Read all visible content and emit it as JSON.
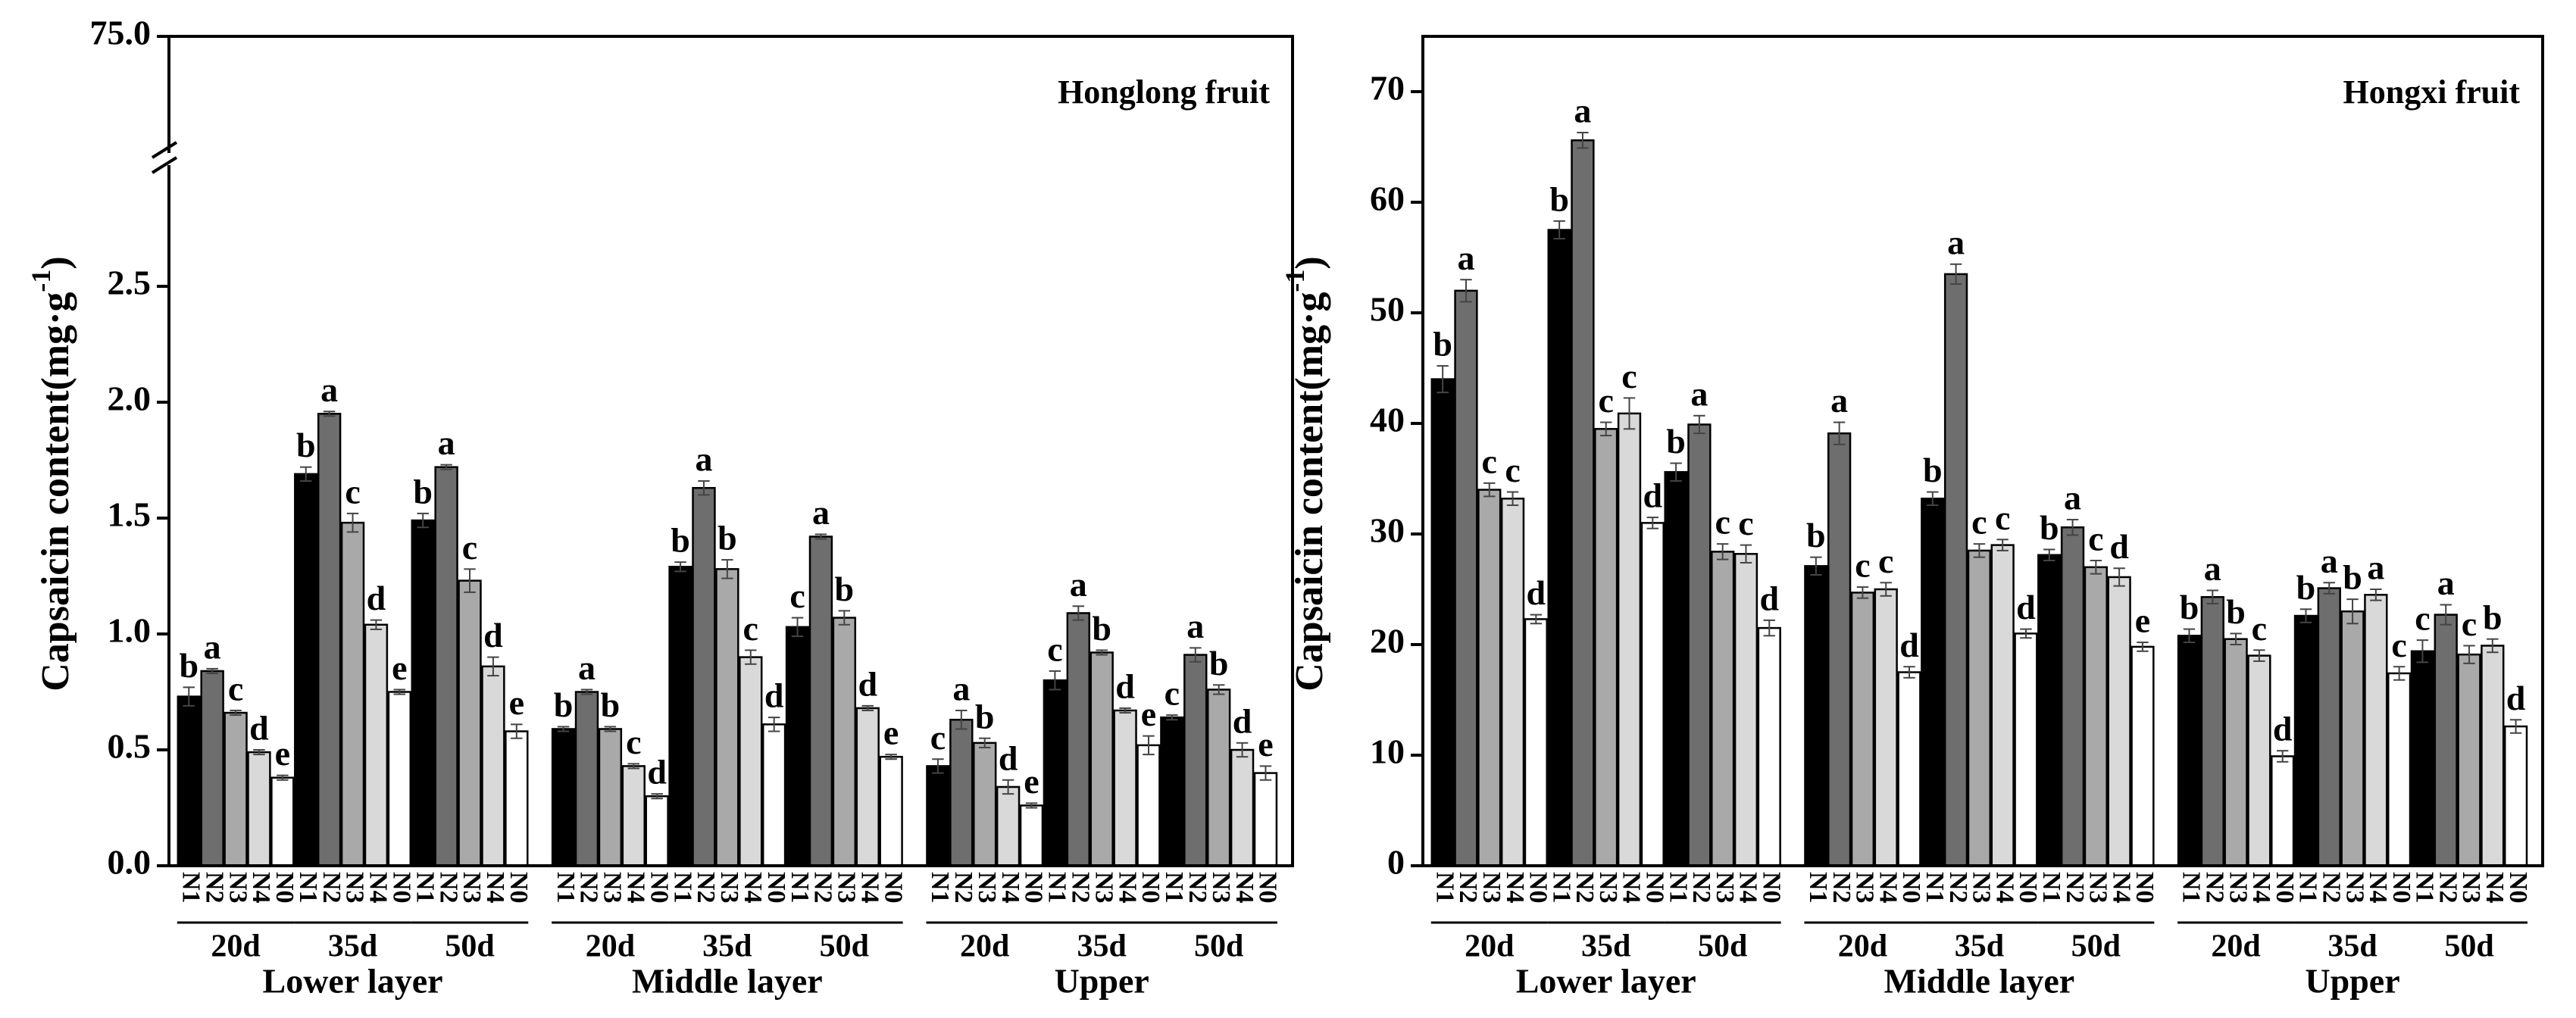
{
  "chart_data": [
    {
      "type": "bar",
      "title": "Honglong fruit",
      "ylabel": "Capsaicin content(mg·g",
      "ylabel_sup": "-1",
      "ylabel_end": ")",
      "groups": [
        "Lower layer",
        "Middle layer",
        "Upper"
      ],
      "categories": [
        "20d",
        "35d",
        "50d",
        "20d",
        "35d",
        "50d",
        "20d",
        "35d",
        "50d"
      ],
      "ylim": [
        0,
        75
      ],
      "ybreak": [
        3.0,
        72.0
      ],
      "yticks": [
        {
          "value": 0,
          "label": "0.0"
        },
        {
          "value": 0.5,
          "label": "0.5"
        },
        {
          "value": 1,
          "label": "1.0"
        },
        {
          "value": 1.5,
          "label": "1.5"
        },
        {
          "value": 2,
          "label": "2.0"
        },
        {
          "value": 2.5,
          "label": "2.5"
        },
        {
          "value": 75,
          "label": "75.0"
        }
      ],
      "series": [
        {
          "name": "N1",
          "color": "#000000",
          "values": [
            0.73,
            1.69,
            1.49,
            0.59,
            1.29,
            1.03,
            0.43,
            0.8,
            0.64
          ],
          "errors": [
            0.04,
            0.03,
            0.03,
            0.01,
            0.02,
            0.04,
            0.03,
            0.04,
            0.01
          ],
          "letters": [
            "b",
            "b",
            "b",
            "b",
            "b",
            "c",
            "c",
            "c",
            "c"
          ]
        },
        {
          "name": "N2",
          "color": "#6e6e6e",
          "values": [
            0.84,
            1.95,
            1.72,
            0.75,
            1.63,
            1.42,
            0.63,
            1.09,
            0.91
          ],
          "errors": [
            0.01,
            0.01,
            0.01,
            0.01,
            0.03,
            0.01,
            0.04,
            0.03,
            0.03
          ],
          "letters": [
            "a",
            "a",
            "a",
            "a",
            "a",
            "a",
            "a",
            "a",
            "a"
          ]
        },
        {
          "name": "N3",
          "color": "#a9a9a9",
          "values": [
            0.66,
            1.48,
            1.23,
            0.59,
            1.28,
            1.07,
            0.53,
            0.92,
            0.76
          ],
          "errors": [
            0.01,
            0.04,
            0.05,
            0.01,
            0.04,
            0.03,
            0.02,
            0.01,
            0.02
          ],
          "letters": [
            "c",
            "c",
            "c",
            "b",
            "b",
            "b",
            "b",
            "b",
            "b"
          ]
        },
        {
          "name": "N4",
          "color": "#d9d9d9",
          "values": [
            0.49,
            1.04,
            0.86,
            0.43,
            0.9,
            0.68,
            0.34,
            0.67,
            0.5
          ],
          "errors": [
            0.01,
            0.02,
            0.04,
            0.01,
            0.03,
            0.01,
            0.03,
            0.01,
            0.03
          ],
          "letters": [
            "d",
            "d",
            "d",
            "c",
            "c",
            "d",
            "d",
            "d",
            "d"
          ]
        },
        {
          "name": "N0",
          "color": "#ffffff",
          "values": [
            0.38,
            0.75,
            0.58,
            0.3,
            0.61,
            0.47,
            0.26,
            0.52,
            0.4
          ],
          "errors": [
            0.01,
            0.01,
            0.03,
            0.01,
            0.03,
            0.01,
            0.01,
            0.04,
            0.03
          ],
          "letters": [
            "e",
            "e",
            "e",
            "d",
            "d",
            "e",
            "e",
            "e",
            "e"
          ]
        }
      ]
    },
    {
      "type": "bar",
      "title": "Hongxi fruit",
      "ylabel": "Capsaicin content(mg·g",
      "ylabel_sup": "-1",
      "ylabel_end": ")",
      "groups": [
        "Lower layer",
        "Middle layer",
        "Upper"
      ],
      "categories": [
        "20d",
        "35d",
        "50d",
        "20d",
        "35d",
        "50d",
        "20d",
        "35d",
        "50d"
      ],
      "ylim": [
        0,
        75
      ],
      "yticks": [
        0,
        10,
        20,
        30,
        40,
        50,
        60,
        70
      ],
      "series": [
        {
          "name": "N1",
          "color": "#000000",
          "values": [
            44.0,
            57.5,
            35.6,
            27.1,
            33.2,
            28.1,
            20.8,
            22.6,
            19.4
          ],
          "errors": [
            1.2,
            0.8,
            0.8,
            0.8,
            0.6,
            0.5,
            0.6,
            0.6,
            1.0
          ],
          "letters": [
            "b",
            "b",
            "b",
            "b",
            "b",
            "b",
            "b",
            "b",
            "c"
          ]
        },
        {
          "name": "N2",
          "color": "#6e6e6e",
          "values": [
            52.0,
            65.6,
            39.9,
            39.1,
            53.5,
            30.6,
            24.3,
            25.1,
            22.7
          ],
          "errors": [
            1.0,
            0.7,
            0.8,
            1.0,
            0.9,
            0.7,
            0.6,
            0.5,
            0.9
          ],
          "letters": [
            "a",
            "a",
            "a",
            "a",
            "a",
            "a",
            "a",
            "a",
            "a"
          ]
        },
        {
          "name": "N3",
          "color": "#a9a9a9",
          "values": [
            34.0,
            39.5,
            28.4,
            24.7,
            28.5,
            27.0,
            20.5,
            23.0,
            19.1
          ],
          "errors": [
            0.6,
            0.6,
            0.7,
            0.5,
            0.6,
            0.6,
            0.5,
            1.1,
            0.8
          ],
          "letters": [
            "c",
            "c",
            "c",
            "c",
            "c",
            "c",
            "b",
            "b",
            "c"
          ]
        },
        {
          "name": "N4",
          "color": "#d9d9d9",
          "values": [
            33.2,
            40.9,
            28.2,
            25.0,
            29.0,
            26.1,
            19.0,
            24.5,
            19.9
          ],
          "errors": [
            0.6,
            1.4,
            0.8,
            0.6,
            0.5,
            0.8,
            0.5,
            0.5,
            0.6
          ],
          "letters": [
            "c",
            "c",
            "c",
            "c",
            "c",
            "d",
            "c",
            "a",
            "b"
          ]
        },
        {
          "name": "N0",
          "color": "#ffffff",
          "values": [
            22.3,
            31.0,
            21.5,
            17.5,
            21.0,
            19.8,
            9.9,
            17.4,
            12.6
          ],
          "errors": [
            0.4,
            0.5,
            0.7,
            0.5,
            0.4,
            0.4,
            0.5,
            0.6,
            0.6
          ],
          "letters": [
            "d",
            "d",
            "d",
            "d",
            "d",
            "e",
            "d",
            "c",
            "d"
          ]
        }
      ]
    }
  ]
}
